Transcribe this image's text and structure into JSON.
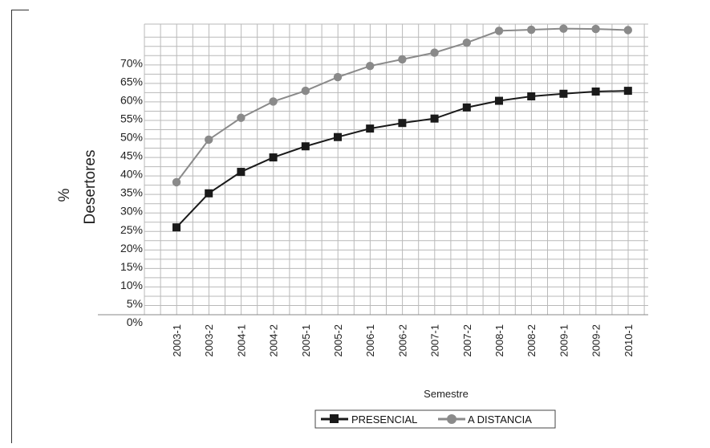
{
  "chart_data": {
    "type": "line",
    "title": "",
    "xlabel": "Semestre",
    "ylabel": "Desertores",
    "ylabel_top": "%",
    "categories": [
      "2003-1",
      "2003-2",
      "2004-1",
      "2004-2",
      "2005-1",
      "2005-2",
      "2006-1",
      "2006-2",
      "2007-1",
      "2007-2",
      "2008-1",
      "2008-2",
      "2009-1",
      "2009-2",
      "2010-1"
    ],
    "y_ticks": [
      "0%",
      "5%",
      "10%",
      "15%",
      "20%",
      "25%",
      "30%",
      "35%",
      "40%",
      "45%",
      "50%",
      "55%",
      "60%",
      "65%",
      "70%"
    ],
    "ylim": [
      0,
      75
    ],
    "grid": true,
    "legend_position": "bottom",
    "series": [
      {
        "name": "PRESENCIAL",
        "color": "#1a1a1a",
        "marker": "square",
        "values": [
          23.6,
          32.8,
          38.6,
          42.5,
          45.5,
          48.0,
          50.3,
          51.8,
          53.0,
          56.0,
          57.8,
          59.0,
          59.7,
          60.3,
          60.5
        ]
      },
      {
        "name": "A DISTANCIA",
        "color": "#8a8a8a",
        "marker": "circle",
        "values": [
          35.8,
          47.3,
          53.2,
          57.6,
          60.5,
          64.2,
          67.2,
          69.0,
          70.8,
          73.5,
          76.7,
          77.0,
          77.3,
          77.2,
          76.9
        ]
      }
    ]
  }
}
